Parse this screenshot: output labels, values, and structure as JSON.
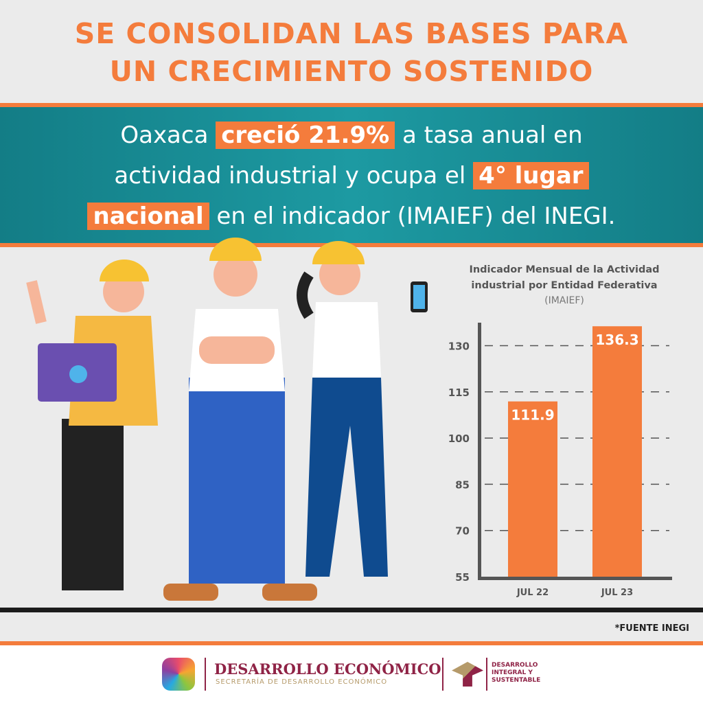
{
  "title": {
    "line1": "SE CONSOLIDAN LAS BASES PARA",
    "line2": "UN CRECIMIENTO SOSTENIDO"
  },
  "headline": {
    "p1": "Oaxaca ",
    "h1": "creció 21.9%",
    "p2": " a tasa anual en",
    "p3": "actividad industrial y ocupa el ",
    "h2": "4° lugar ",
    "h3": "nacional",
    "p4": " en el indicador (IMAIEF) del INEGI."
  },
  "colors": {
    "accent": "#f47c3c",
    "teal": "#1a8d95",
    "bar": "#f47c3c"
  },
  "chart_data": {
    "type": "bar",
    "title": "Indicador Mensual de la Actividad industrial por Entidad Federativa",
    "subtitle": "(IMAIEF)",
    "categories": [
      "JUL 22",
      "JUL 23"
    ],
    "values": [
      111.9,
      136.3
    ],
    "data_labels": [
      "111.9",
      "136.3"
    ],
    "yticks": [
      "55",
      "70",
      "85",
      "100",
      "115",
      "130"
    ],
    "ylim": [
      55,
      138
    ],
    "grid": "dashed horizontal"
  },
  "source": "*FUENTE INEGI",
  "footer": {
    "logo1_title": "DESARROLLO ECONÓMICO",
    "logo1_sub": "SECRETARÍA DE DESARROLLO ECONÓMICO",
    "logo2_text": "DESARROLLO INTEGRAL Y SUSTENTABLE"
  }
}
